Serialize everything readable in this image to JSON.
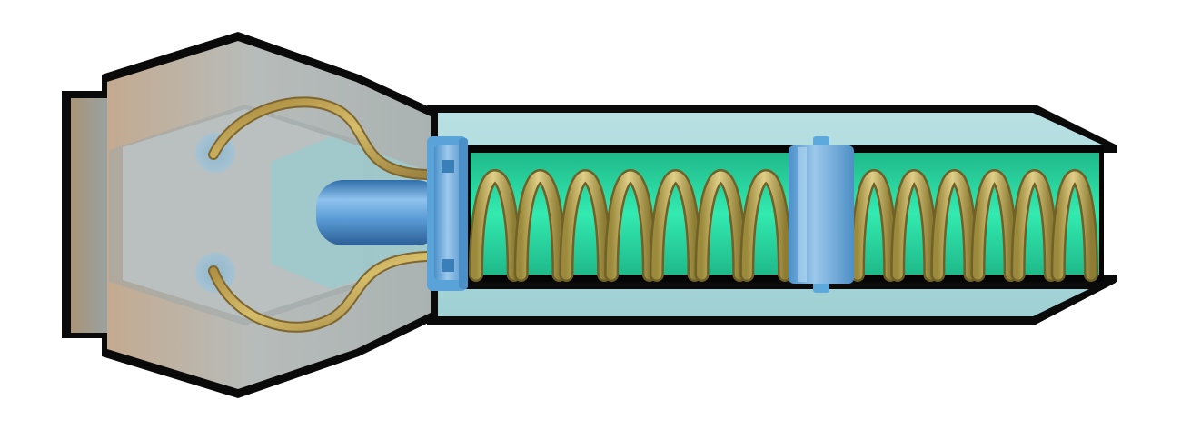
{
  "illustration": {
    "subject": "spring-loaded-probe-cutaway",
    "colors": {
      "background": "#ffffff",
      "outline": "#0a0a0a",
      "head_body": "#b5bdbb",
      "head_shade": "#8e9593",
      "head_warm": "#c8aa8c",
      "barrel": "#a9d7da",
      "barrel_light": "#c3e7ea",
      "bore": "#050505",
      "inner_tube": "#27e0a3",
      "spring": "#b3a04e",
      "spring_highlight": "#e3d38f",
      "collar": "#5ea9dc",
      "piston": "#4f8ecb",
      "wire": "#b39a44"
    },
    "spring_coil_count": 13
  }
}
